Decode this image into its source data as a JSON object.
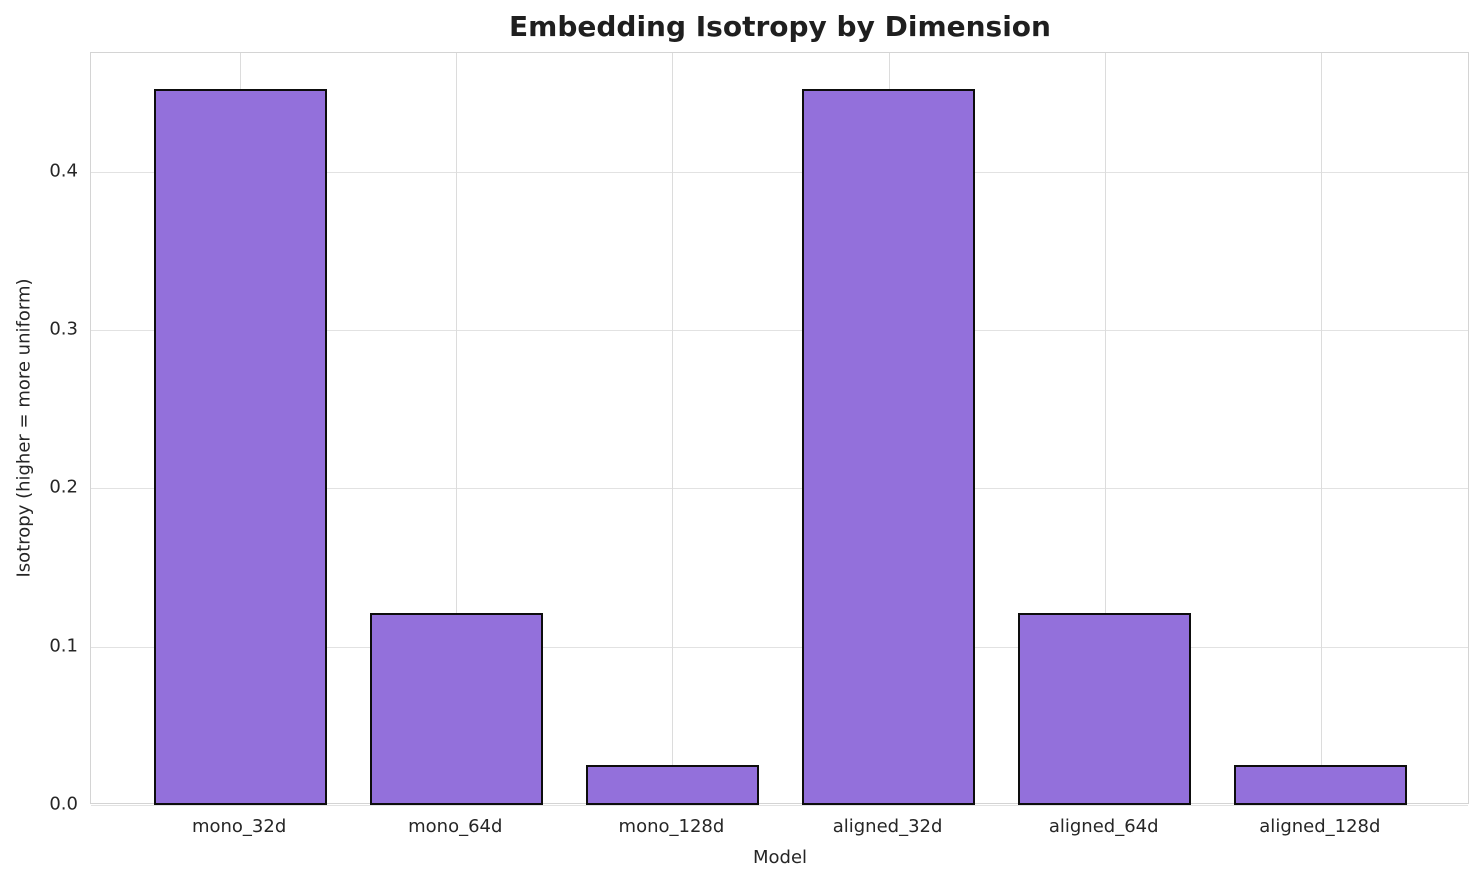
{
  "chart_data": {
    "type": "bar",
    "title": "Embedding Isotropy by Dimension",
    "xlabel": "Model",
    "ylabel": "Isotropy (higher = more uniform)",
    "categories": [
      "mono_32d",
      "mono_64d",
      "mono_128d",
      "aligned_32d",
      "aligned_64d",
      "aligned_128d"
    ],
    "values": [
      0.452,
      0.121,
      0.025,
      0.452,
      0.121,
      0.025
    ],
    "yticks": [
      "0.0",
      "0.1",
      "0.2",
      "0.3",
      "0.4"
    ],
    "ylim": [
      0,
      0.475
    ],
    "xlim": [
      -0.69,
      5.69
    ],
    "bar_width": 0.8,
    "grid": "on",
    "legend": "none",
    "colors": {
      "bar_fill": "#9370DB",
      "bar_edge": "#0d0d0d",
      "grid_horizontal": "#e2e2e2",
      "grid_vertical": "#dcdcdc",
      "spine": "#d4d4d4",
      "text": "#262626",
      "title_text": "#1f1f1f",
      "background": "#ffffff"
    }
  }
}
